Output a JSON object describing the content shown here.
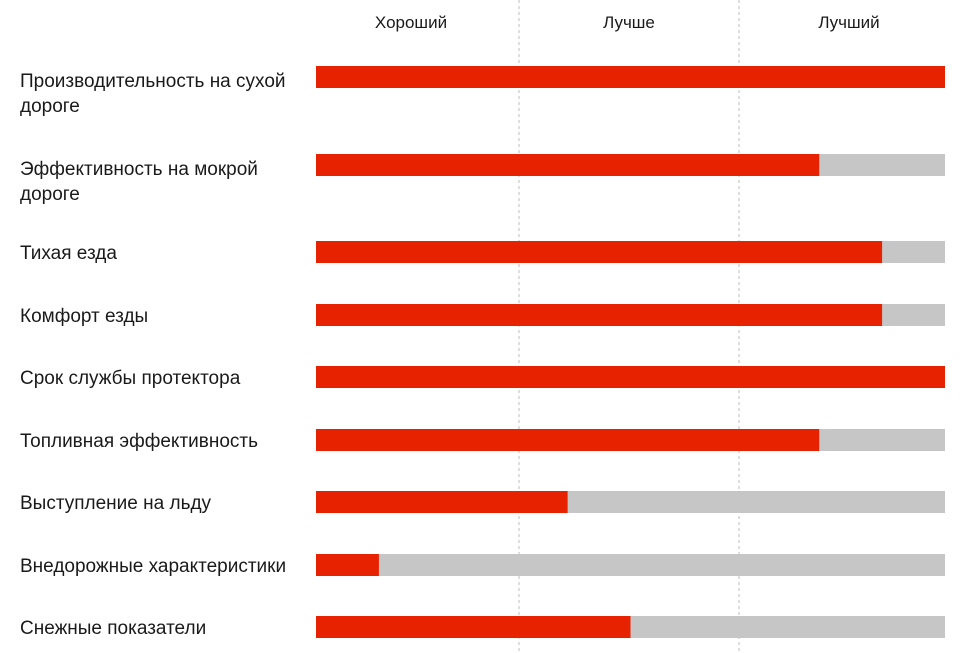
{
  "colors": {
    "filled": "#e62200",
    "track": "#c6c6c6"
  },
  "chart_data": {
    "type": "bar",
    "orientation": "horizontal",
    "scale_labels": [
      "Хороший",
      "Лучше",
      "Лучший"
    ],
    "xlim": [
      0,
      100
    ],
    "grid": true,
    "legend": "none",
    "categories": [
      [
        "Производительность на сухой",
        "дороге"
      ],
      [
        "Эффективность на мокрой",
        "дороге"
      ],
      [
        "Тихая езда"
      ],
      [
        "Комфорт езды"
      ],
      [
        "Срок службы протектора"
      ],
      [
        "Топливная эффективность"
      ],
      [
        "Выступление на льду"
      ],
      [
        "Внедорожные характеристики"
      ],
      [
        "Снежные показатели"
      ]
    ],
    "values": [
      100,
      80,
      90,
      90,
      100,
      80,
      40,
      10,
      50
    ]
  }
}
